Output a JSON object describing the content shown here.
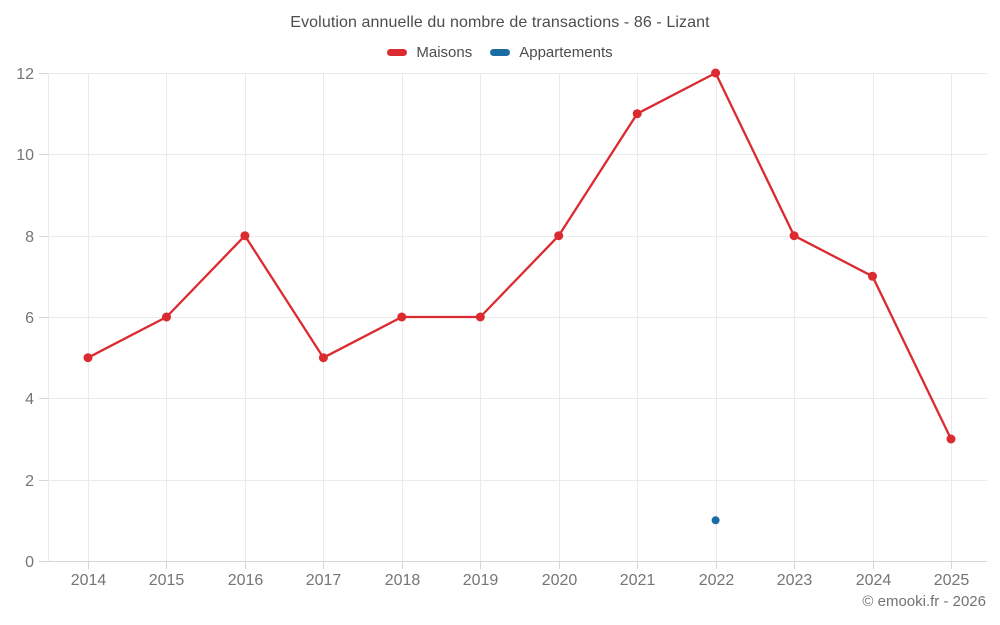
{
  "title": "Evolution annuelle du nombre de transactions - 86 - Lizant",
  "footer": "© emooki.fr - 2026",
  "theme": {
    "grid_color": "#eaeaea",
    "axis_color": "#d6d6d6",
    "tick_label_color": "#757575",
    "title_color": "#4d4d4d",
    "footer_color": "#737373",
    "maisons_red": "#db2a30",
    "appartements_blue": "#1a6ca3"
  },
  "chart_data": {
    "type": "line",
    "title": "Evolution annuelle du nombre de transactions - 86 - Lizant",
    "xlabel": "",
    "ylabel": "",
    "x": [
      "2014",
      "2015",
      "2016",
      "2017",
      "2018",
      "2019",
      "2020",
      "2021",
      "2022",
      "2023",
      "2024",
      "2025"
    ],
    "series": [
      {
        "name": "Maisons",
        "color": "#db2a30",
        "values": [
          5,
          6,
          8,
          5,
          6,
          6,
          8,
          11,
          12,
          8,
          7,
          3
        ]
      },
      {
        "name": "Appartements",
        "color": "#1a6ca3",
        "values": [
          null,
          null,
          null,
          null,
          null,
          null,
          null,
          null,
          1,
          null,
          null,
          null
        ]
      }
    ],
    "ylim": [
      0,
      12
    ],
    "yticks": [
      0,
      2,
      4,
      6,
      8,
      10,
      12
    ],
    "grid": true,
    "legend_position": "top"
  }
}
